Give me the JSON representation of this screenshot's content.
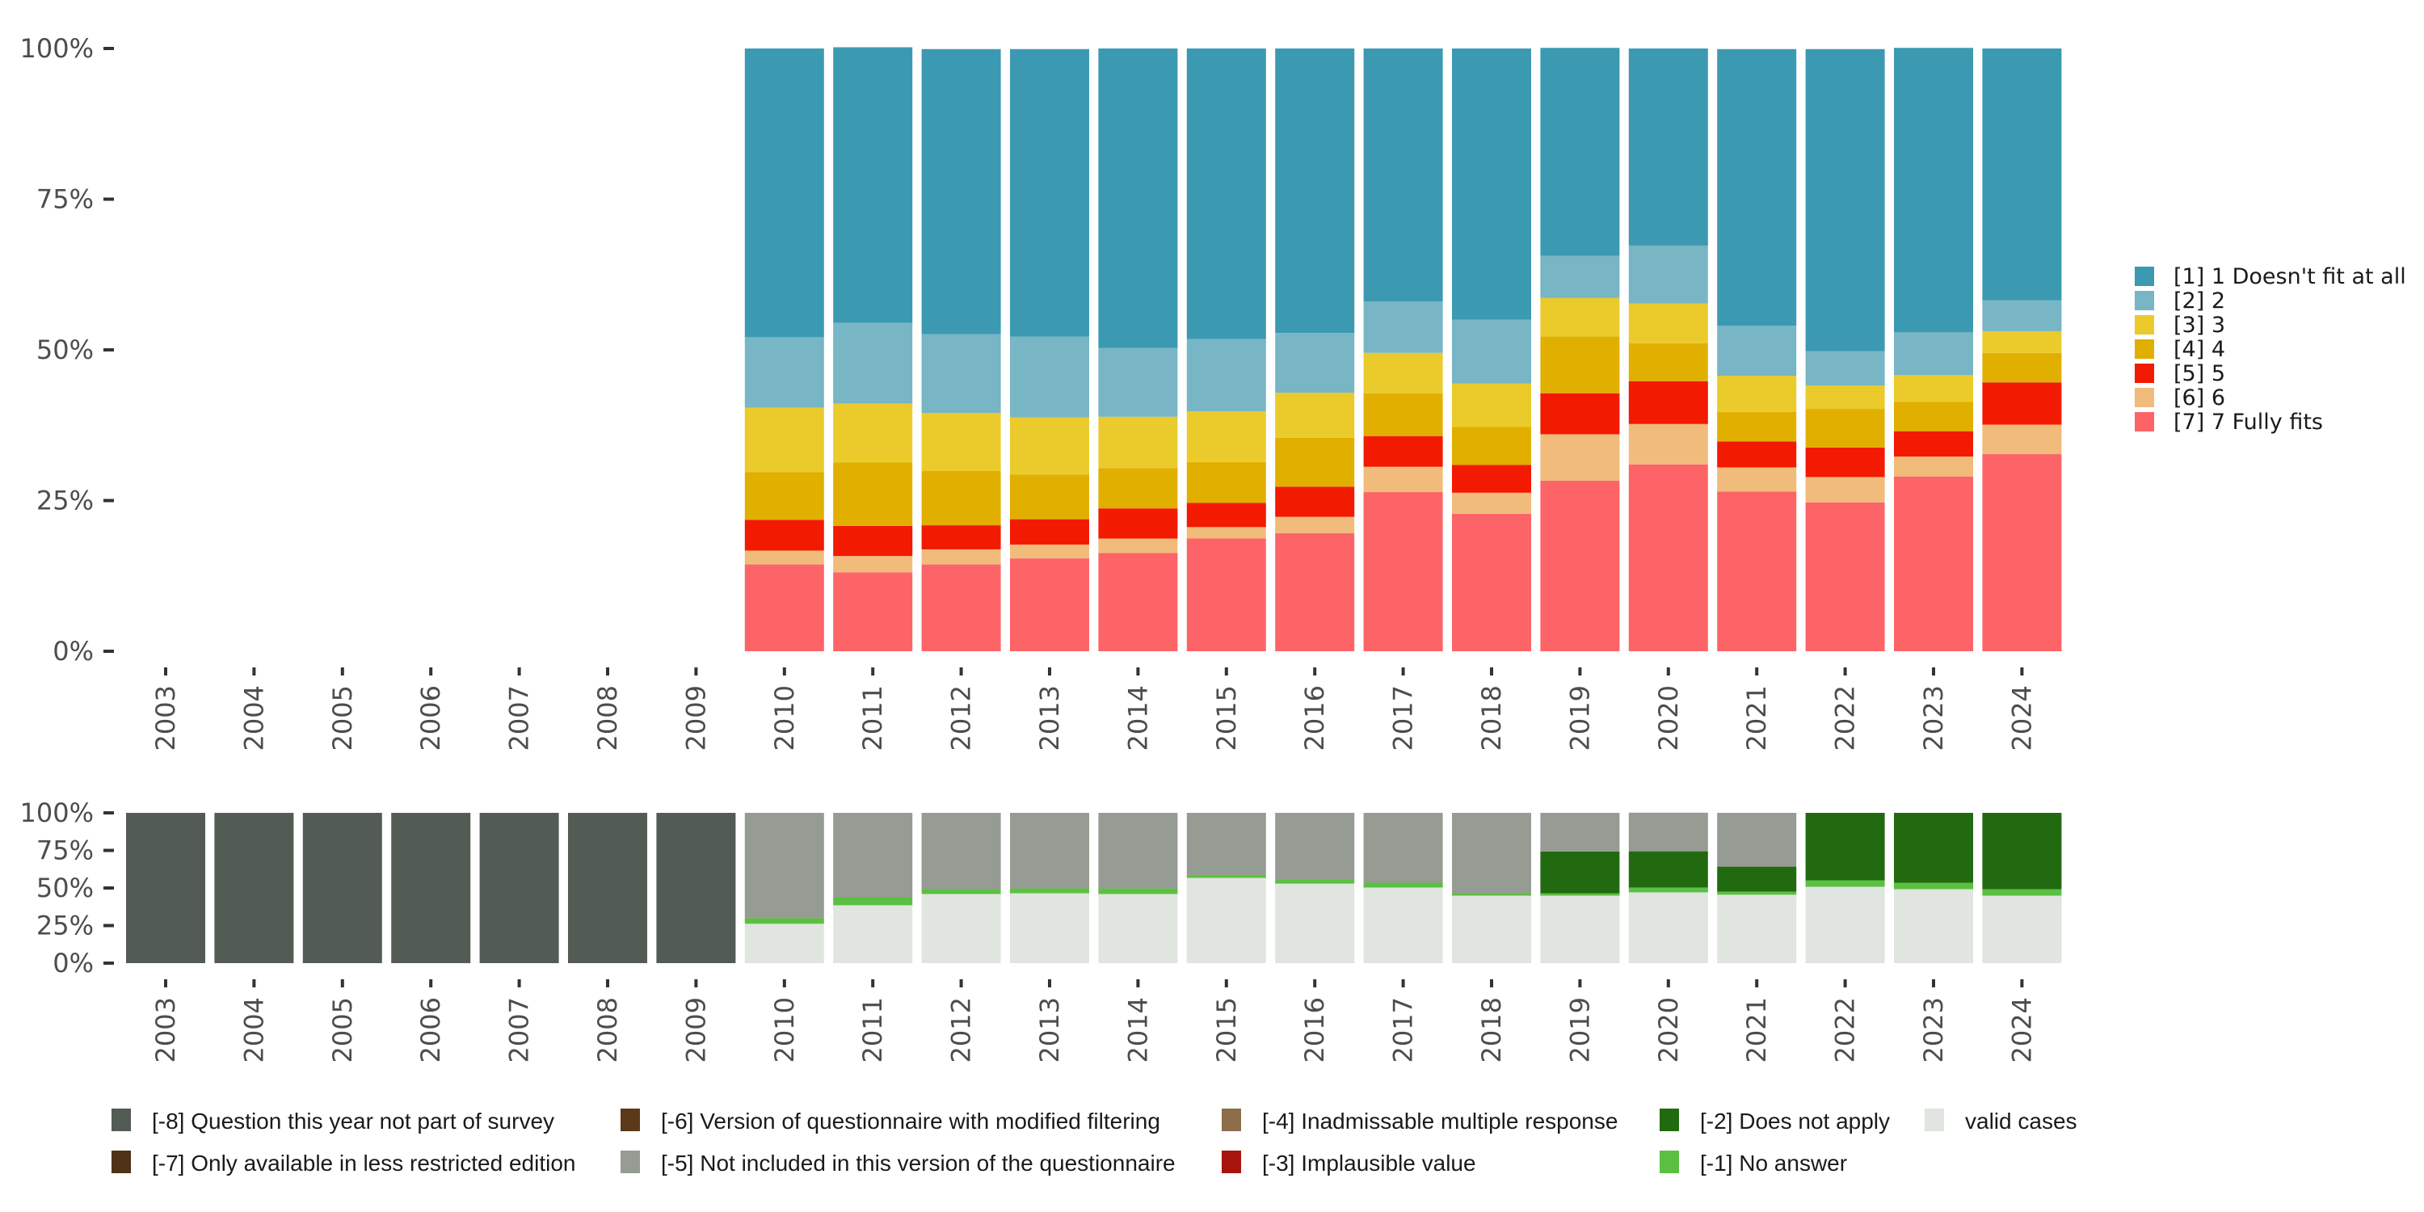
{
  "chart_data": [
    {
      "type": "bar",
      "stacked": true,
      "percent": true,
      "name": "response-distribution",
      "categories": [
        "2003",
        "2004",
        "2005",
        "2006",
        "2007",
        "2008",
        "2009",
        "2010",
        "2011",
        "2012",
        "2013",
        "2014",
        "2015",
        "2016",
        "2017",
        "2018",
        "2019",
        "2020",
        "2021",
        "2022",
        "2023",
        "2024"
      ],
      "ylim": [
        0,
        100
      ],
      "yticks": [
        "0%",
        "25%",
        "50%",
        "75%",
        "100%"
      ],
      "xlabel": "",
      "ylabel": "",
      "legend_position": "right",
      "stack_order_bottom_to_top": [
        "[7] 7 Fully fits",
        "[6] 6",
        "[5] 5",
        "[4] 4",
        "[3] 3",
        "[2] 2",
        "[1] 1 Doesn't fit at all"
      ],
      "series": [
        {
          "name": "[1] 1 Doesn't fit at all",
          "color": "#3c99b2",
          "values": [
            null,
            null,
            null,
            null,
            null,
            null,
            null,
            47.9,
            45.7,
            47.3,
            47.7,
            49.7,
            48.2,
            47.2,
            42.0,
            45.0,
            34.5,
            32.7,
            45.9,
            50.1,
            47.2,
            41.8
          ]
        },
        {
          "name": "[2] 2",
          "color": "#78b5c5",
          "values": [
            null,
            null,
            null,
            null,
            null,
            null,
            null,
            11.7,
            13.4,
            13.1,
            13.4,
            11.4,
            12.0,
            9.9,
            8.5,
            10.6,
            7.0,
            9.6,
            8.3,
            5.7,
            7.1,
            5.1
          ]
        },
        {
          "name": "[3] 3",
          "color": "#eacb2b",
          "values": [
            null,
            null,
            null,
            null,
            null,
            null,
            null,
            10.7,
            9.8,
            9.6,
            9.5,
            8.5,
            8.4,
            7.5,
            6.7,
            7.2,
            6.4,
            6.6,
            6.0,
            3.9,
            4.4,
            3.6
          ]
        },
        {
          "name": "[4] 4",
          "color": "#e1af00",
          "values": [
            null,
            null,
            null,
            null,
            null,
            null,
            null,
            7.9,
            10.5,
            9.0,
            7.4,
            6.7,
            6.8,
            8.1,
            7.1,
            6.3,
            9.4,
            6.3,
            4.9,
            6.4,
            4.9,
            4.9
          ]
        },
        {
          "name": "[5] 5",
          "color": "#f21a00",
          "values": [
            null,
            null,
            null,
            null,
            null,
            null,
            null,
            5.1,
            5.0,
            4.0,
            4.2,
            5.0,
            4.0,
            5.0,
            5.1,
            4.6,
            6.8,
            7.1,
            4.3,
            4.9,
            4.2,
            7.0
          ]
        },
        {
          "name": "[6] 6",
          "color": "#f1bb7b",
          "values": [
            null,
            null,
            null,
            null,
            null,
            null,
            null,
            2.3,
            2.7,
            2.5,
            2.3,
            2.4,
            1.9,
            2.7,
            4.2,
            3.5,
            7.7,
            6.7,
            4.0,
            4.2,
            3.3,
            4.9
          ]
        },
        {
          "name": "[7] 7 Fully fits",
          "color": "#fd6467",
          "values": [
            null,
            null,
            null,
            null,
            null,
            null,
            null,
            14.4,
            13.1,
            14.4,
            15.4,
            16.3,
            18.7,
            19.6,
            26.4,
            22.8,
            28.3,
            31.0,
            26.5,
            24.7,
            29.0,
            32.7
          ]
        }
      ]
    },
    {
      "type": "bar",
      "stacked": true,
      "percent": true,
      "name": "missing-value-distribution",
      "categories": [
        "2003",
        "2004",
        "2005",
        "2006",
        "2007",
        "2008",
        "2009",
        "2010",
        "2011",
        "2012",
        "2013",
        "2014",
        "2015",
        "2016",
        "2017",
        "2018",
        "2019",
        "2020",
        "2021",
        "2022",
        "2023",
        "2024"
      ],
      "ylim": [
        0,
        100
      ],
      "yticks": [
        "0%",
        "25%",
        "50%",
        "75%",
        "100%"
      ],
      "xlabel": "",
      "ylabel": "",
      "legend_position": "bottom",
      "stack_order_bottom_to_top": [
        "valid cases",
        "[-1] No answer",
        "[-2] Does not apply",
        "[-3] Implausible value",
        "[-4] Inadmissable multiple response",
        "[-5] Not included in this version of the questionnaire",
        "[-6] Version of questionnaire with modified filtering",
        "[-7] Only available in less restricted edition",
        "[-8] Question this year not part of survey"
      ],
      "series": [
        {
          "name": "[-8] Question this year not part of survey",
          "color": "#535b55",
          "values": [
            100,
            100,
            100,
            100,
            100,
            100,
            100,
            0,
            0,
            0,
            0,
            0,
            0,
            0,
            0,
            0,
            0,
            0,
            0,
            0,
            0,
            0
          ]
        },
        {
          "name": "[-7] Only available in less restricted edition",
          "color": "#4f3218",
          "values": [
            0,
            0,
            0,
            0,
            0,
            0,
            0,
            0,
            0,
            0,
            0,
            0,
            0,
            0,
            0,
            0,
            0,
            0,
            0,
            0,
            0,
            0
          ]
        },
        {
          "name": "[-6] Version of questionnaire with modified filtering",
          "color": "#5a3a1a",
          "values": [
            0,
            0,
            0,
            0,
            0,
            0,
            0,
            0,
            0,
            0,
            0,
            0,
            0,
            0,
            0,
            0,
            0,
            0,
            0,
            0,
            0,
            0
          ]
        },
        {
          "name": "[-5] Not included in this version of the questionnaire",
          "color": "#969b93",
          "values": [
            0,
            0,
            0,
            0,
            0,
            0,
            0,
            70.1,
            56.2,
            50.8,
            50.3,
            50.3,
            41.2,
            44.4,
            46.5,
            53.5,
            25.7,
            25.7,
            35.8,
            0,
            0,
            0
          ]
        },
        {
          "name": "[-4] Inadmissable multiple response",
          "color": "#8e6d4a",
          "values": [
            0,
            0,
            0,
            0,
            0,
            0,
            0,
            0,
            0,
            0,
            0,
            0,
            0,
            0,
            0,
            0,
            0,
            0,
            0,
            0,
            0,
            0
          ]
        },
        {
          "name": "[-3] Implausible value",
          "color": "#a8140e",
          "values": [
            0,
            0,
            0,
            0,
            0,
            0,
            0,
            0,
            0,
            0,
            0,
            0,
            0,
            0,
            0,
            0,
            0,
            0,
            0,
            0,
            0,
            0
          ]
        },
        {
          "name": "[-2] Does not apply",
          "color": "#216a10",
          "values": [
            0,
            0,
            0,
            0,
            0,
            0,
            0,
            0,
            0,
            0,
            0,
            0,
            0,
            0,
            0,
            0,
            27.8,
            24.1,
            16.6,
            44.9,
            46.5,
            50.8
          ]
        },
        {
          "name": "[-1] No answer",
          "color": "#5bc041",
          "values": [
            0,
            0,
            0,
            0,
            0,
            0,
            0,
            3.7,
            5.3,
            3.2,
            3.2,
            3.7,
            2.1,
            2.7,
            3.2,
            1.6,
            1.6,
            3.2,
            2.1,
            4.3,
            4.3,
            4.3
          ]
        },
        {
          "name": "valid cases",
          "color": "#e0e5df",
          "values": [
            0,
            0,
            0,
            0,
            0,
            0,
            0,
            26.2,
            38.5,
            46.0,
            46.5,
            46.0,
            56.7,
            52.9,
            50.3,
            44.9,
            44.9,
            47.1,
            45.5,
            50.8,
            49.2,
            44.9
          ]
        }
      ],
      "legend_entries": [
        {
          "label": "[-8] Question this year not part of survey",
          "color": "#535b55"
        },
        {
          "label": "[-7] Only available in less restricted edition",
          "color": "#4f3218"
        },
        {
          "label": "[-6] Version of questionnaire with modified filtering",
          "color": "#5a3a1a"
        },
        {
          "label": "[-5] Not included in this version of the questionnaire",
          "color": "#969b93"
        },
        {
          "label": "[-4] Inadmissable multiple response",
          "color": "#8e6d4a"
        },
        {
          "label": "[-3] Implausible value",
          "color": "#a8140e"
        },
        {
          "label": "[-2] Does not apply",
          "color": "#216a10"
        },
        {
          "label": "[-1] No answer",
          "color": "#5bc041"
        },
        {
          "label": "valid cases",
          "color": "#e0e5df"
        }
      ]
    }
  ]
}
